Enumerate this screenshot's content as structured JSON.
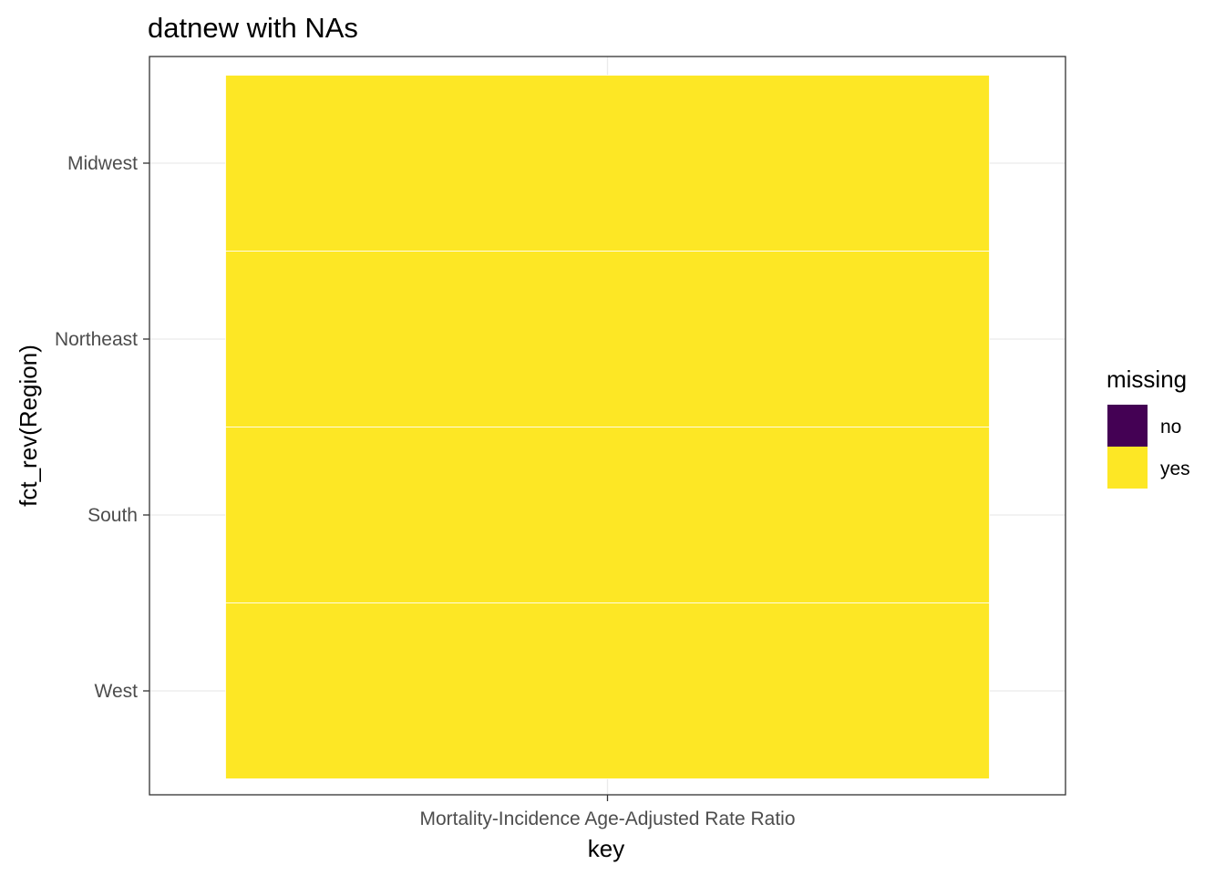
{
  "chart_data": {
    "type": "heatmap",
    "title": "datnew with NAs",
    "xlabel": "key",
    "ylabel": "fct_rev(Region)",
    "x_categories": [
      "Mortality-Incidence Age-Adjusted Rate Ratio"
    ],
    "y_categories": [
      "Midwest",
      "Northeast",
      "South",
      "West"
    ],
    "cells": [
      {
        "x": "Mortality-Incidence Age-Adjusted Rate Ratio",
        "y": "Midwest",
        "missing": "yes"
      },
      {
        "x": "Mortality-Incidence Age-Adjusted Rate Ratio",
        "y": "Northeast",
        "missing": "yes"
      },
      {
        "x": "Mortality-Incidence Age-Adjusted Rate Ratio",
        "y": "South",
        "missing": "yes"
      },
      {
        "x": "Mortality-Incidence Age-Adjusted Rate Ratio",
        "y": "West",
        "missing": "yes"
      }
    ],
    "legend": {
      "title": "missing",
      "placement": "right",
      "entries": [
        {
          "label": "no",
          "color": "#440154"
        },
        {
          "label": "yes",
          "color": "#FDE725"
        }
      ]
    },
    "grid": true
  }
}
